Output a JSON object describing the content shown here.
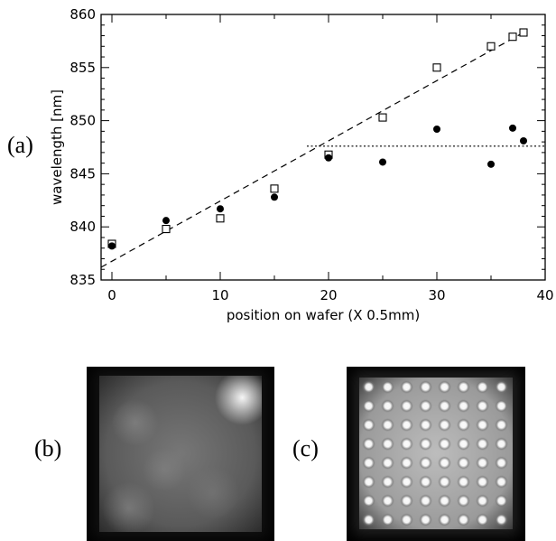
{
  "panel_labels": {
    "a": "(a)",
    "b": "(b)",
    "c": "(c)"
  },
  "chart_data": {
    "type": "scatter",
    "title": "",
    "xlabel": "position on wafer (X 0.5mm)",
    "ylabel": "wavelength [nm]",
    "xlim": [
      -1,
      40
    ],
    "ylim": [
      835,
      860
    ],
    "x_ticks": [
      0,
      10,
      20,
      30,
      40
    ],
    "y_ticks": [
      835,
      840,
      845,
      850,
      855,
      860
    ],
    "grid": false,
    "series": [
      {
        "marker": "open-square",
        "x": [
          0,
          5,
          10,
          15,
          20,
          25,
          30,
          35,
          37,
          38
        ],
        "y": [
          838.4,
          839.8,
          840.8,
          843.6,
          846.8,
          850.3,
          855.0,
          857.0,
          857.9,
          858.3
        ]
      },
      {
        "marker": "filled-circle",
        "x": [
          0,
          5,
          10,
          15,
          20,
          25,
          30,
          35,
          37,
          38
        ],
        "y": [
          838.2,
          840.6,
          841.7,
          842.8,
          846.5,
          846.1,
          849.2,
          845.9,
          849.3,
          848.1
        ]
      }
    ],
    "lines": [
      {
        "style": "dashed",
        "x": [
          -1,
          38
        ],
        "y": [
          836.2,
          858.3
        ]
      },
      {
        "style": "dotted",
        "x": [
          18,
          40
        ],
        "y": [
          847.6,
          847.6
        ]
      }
    ]
  },
  "images": [
    {
      "panel": "b",
      "description_color": "#6e6e6e"
    },
    {
      "panel": "c",
      "description_color": "#d2d2d2"
    }
  ]
}
